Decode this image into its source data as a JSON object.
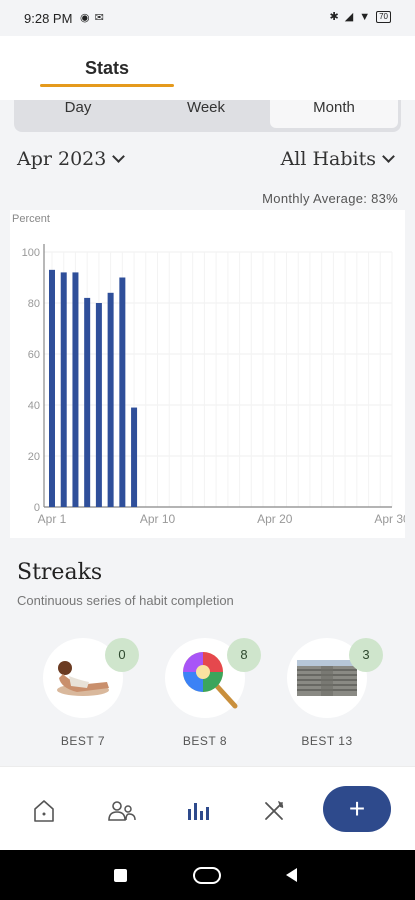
{
  "status": {
    "time": "9:28 PM",
    "battery": "70"
  },
  "header": {
    "tab": "Stats"
  },
  "period_tabs": [
    {
      "label": "Day"
    },
    {
      "label": "Week"
    },
    {
      "label": "Month"
    }
  ],
  "filters": {
    "month": "Apr 2023",
    "habits": "All Habits"
  },
  "monthly_average": "Monthly Average: 83%",
  "chart_data": {
    "type": "bar",
    "ylabel": "Percent",
    "ylim": [
      0,
      100
    ],
    "yticks": [
      0,
      20,
      40,
      60,
      80,
      100
    ],
    "xticks": [
      {
        "label": "Apr 1",
        "day": 1
      },
      {
        "label": "Apr 10",
        "day": 10
      },
      {
        "label": "Apr 20",
        "day": 20
      },
      {
        "label": "Apr 30",
        "day": 30
      }
    ],
    "x": [
      1,
      2,
      3,
      4,
      5,
      6,
      7,
      8
    ],
    "values": [
      93,
      92,
      92,
      82,
      80,
      84,
      90,
      39
    ],
    "xlim": [
      1,
      30
    ],
    "color": "#2f4f9a",
    "grid": true
  },
  "streaks": {
    "title": "Streaks",
    "subtitle": "Continuous series of habit completion",
    "items": [
      {
        "count": "0",
        "best": "BEST 7",
        "icon": "person-relaxing-icon"
      },
      {
        "count": "8",
        "best": "BEST 8",
        "icon": "lollipop-icon"
      },
      {
        "count": "3",
        "best": "BEST 13",
        "icon": "stairs-icon"
      }
    ]
  },
  "nav": {
    "items": [
      "home-icon",
      "people-icon",
      "stats-icon",
      "fork-knife-icon"
    ],
    "fab": "+",
    "active": "stats-icon",
    "active_color": "#2e4a8c"
  }
}
